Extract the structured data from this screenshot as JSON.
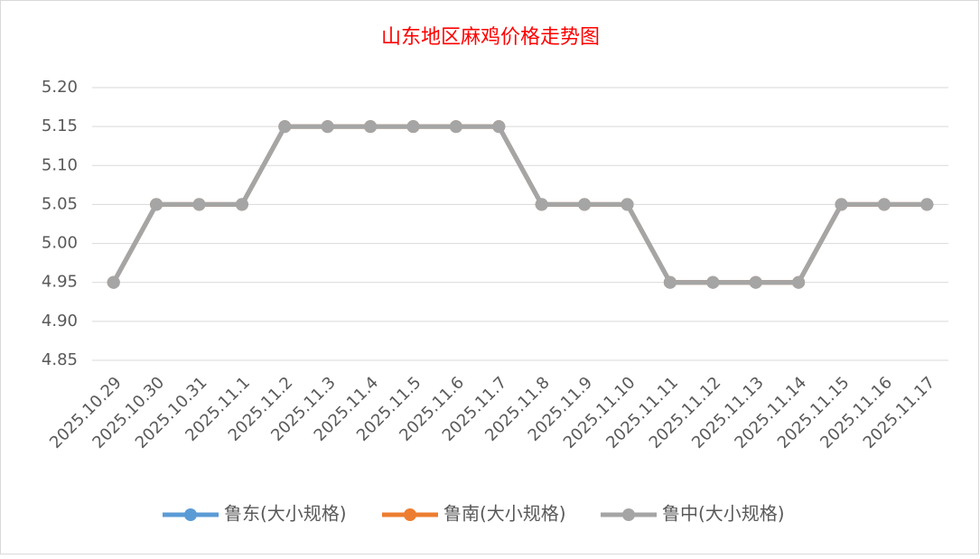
{
  "chart_data": {
    "type": "line",
    "title": "山东地区麻鸡价格走势图",
    "categories": [
      "2025.10.29",
      "2025.10.30",
      "2025.10.31",
      "2025.11.1",
      "2025.11.2",
      "2025.11.3",
      "2025.11.4",
      "2025.11.5",
      "2025.11.6",
      "2025.11.7",
      "2025.11.8",
      "2025.11.9",
      "2025.11.10",
      "2025.11.11",
      "2025.11.12",
      "2025.11.13",
      "2025.11.14",
      "2025.11.15",
      "2025.11.16",
      "2025.11.17"
    ],
    "series": [
      {
        "name": "鲁东(大小规格)",
        "color": "#5b9bd5",
        "values": [
          4.95,
          5.05,
          5.05,
          5.05,
          5.15,
          5.15,
          5.15,
          5.15,
          5.15,
          5.15,
          5.05,
          5.05,
          5.05,
          4.95,
          4.95,
          4.95,
          4.95,
          5.05,
          5.05,
          5.05
        ]
      },
      {
        "name": "鲁南(大小规格)",
        "color": "#ed7d31",
        "values": [
          4.95,
          5.05,
          5.05,
          5.05,
          5.15,
          5.15,
          5.15,
          5.15,
          5.15,
          5.15,
          5.05,
          5.05,
          5.05,
          4.95,
          4.95,
          4.95,
          4.95,
          5.05,
          5.05,
          5.05
        ]
      },
      {
        "name": "鲁中(大小规格)",
        "color": "#a5a5a5",
        "values": [
          4.95,
          5.05,
          5.05,
          5.05,
          5.15,
          5.15,
          5.15,
          5.15,
          5.15,
          5.15,
          5.05,
          5.05,
          5.05,
          4.95,
          4.95,
          4.95,
          4.95,
          5.05,
          5.05,
          5.05
        ]
      }
    ],
    "ylim": [
      4.85,
      5.2
    ],
    "yticks": [
      4.85,
      {
        "value": 4.9,
        "label": "4.90"
      },
      4.95,
      {
        "value": 5.0,
        "label": "5.00"
      },
      5.05,
      {
        "value": 5.1,
        "label": "5.10"
      },
      5.15,
      {
        "value": 5.2,
        "label": "5.20"
      }
    ],
    "grid": true,
    "legend": "bottom"
  }
}
